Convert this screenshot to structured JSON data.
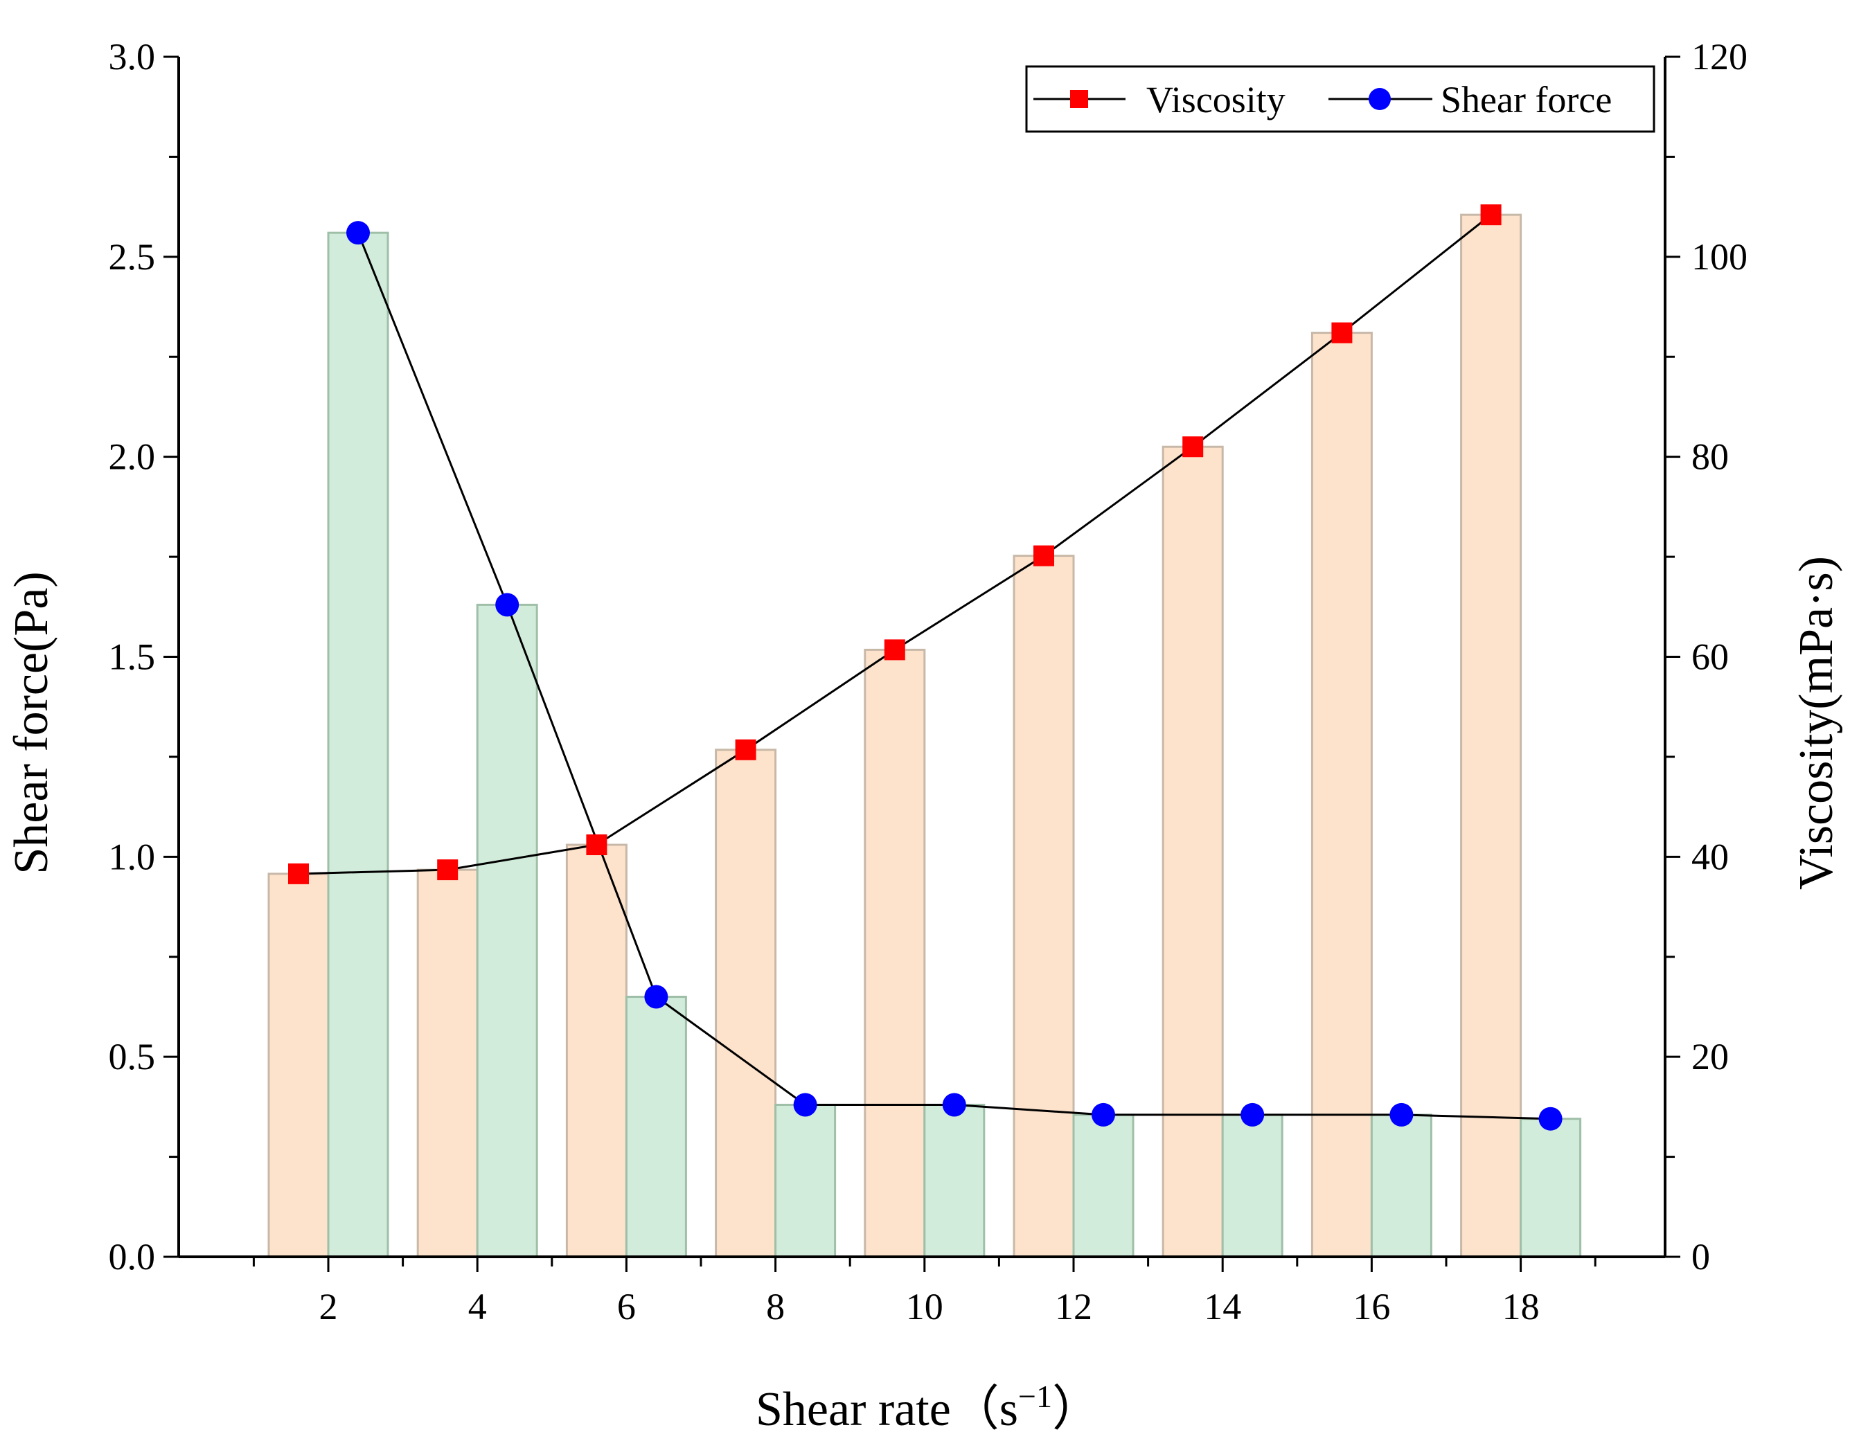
{
  "chart_data": {
    "type": "bar",
    "x": [
      2,
      4,
      6,
      8,
      10,
      12,
      14,
      16,
      18
    ],
    "xlabel": "Shear rate（s",
    "xlabel_superscript": "−1",
    "xlabel_close": "）",
    "ylabel_left": "Shear force(Pa)",
    "ylabel_right": "Viscosity(mPa·s)",
    "xlim": [
      0,
      20
    ],
    "ylim_left": [
      0,
      3.0
    ],
    "ylim_right": [
      0,
      120
    ],
    "xticks": [
      "2",
      "4",
      "6",
      "8",
      "10",
      "12",
      "14",
      "16",
      "18"
    ],
    "yticks_left": [
      "0.0",
      "0.5",
      "1.0",
      "1.5",
      "2.0",
      "2.5",
      "3.0"
    ],
    "yticks_right": [
      "0",
      "20",
      "40",
      "60",
      "80",
      "100",
      "120"
    ],
    "series": [
      {
        "name": "Viscosity",
        "axis": "right",
        "marker": "square",
        "color": "#ff0000",
        "bar_color": "#fde3cc",
        "values": [
          38.3,
          38.7,
          41.2,
          50.7,
          60.7,
          70.1,
          81.0,
          92.4,
          104.2
        ]
      },
      {
        "name": "Shear force",
        "axis": "left",
        "marker": "circle",
        "color": "#0000ff",
        "bar_color": "#d2ecdb",
        "values": [
          2.56,
          1.63,
          0.65,
          0.38,
          0.38,
          0.355,
          0.355,
          0.355,
          0.345
        ]
      }
    ],
    "legend_position": "top-right"
  }
}
